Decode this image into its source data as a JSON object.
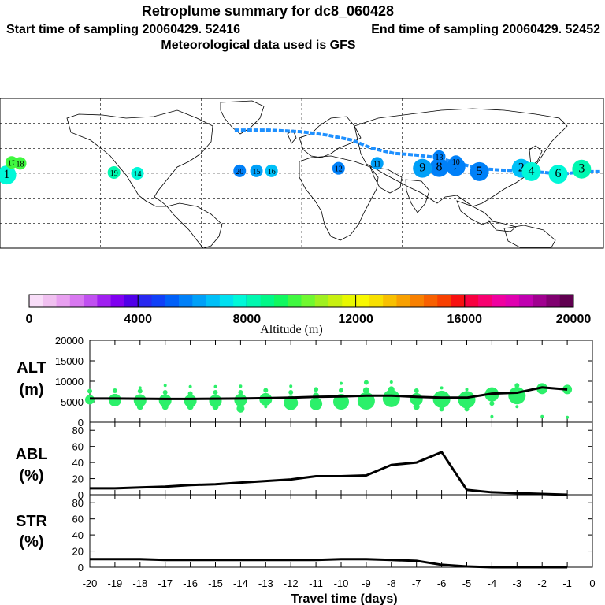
{
  "title": {
    "line1": "Retroplume summary for dc8_060428",
    "line2_start": "Start time of sampling 20060429. 52416",
    "line2_end": "End time of sampling 20060429. 52452",
    "line3": "Meteorological data used is GFS"
  },
  "colorbar": {
    "label": "Altitude (m)",
    "ticks": [
      "0",
      "4000",
      "8000",
      "12000",
      "16000",
      "20000"
    ],
    "colors": [
      "#f8ddf8",
      "#f0c0f0",
      "#e8a0f0",
      "#d878f0",
      "#c050f0",
      "#a020f0",
      "#8000f0",
      "#5000e8",
      "#2828f0",
      "#1040f8",
      "#0060f8",
      "#0080f8",
      "#00a0f8",
      "#00c0f8",
      "#00e0f0",
      "#00f8d8",
      "#00f8b0",
      "#00f888",
      "#10f860",
      "#40f840",
      "#70f830",
      "#a0f020",
      "#c8f010",
      "#e8f800",
      "#f8f800",
      "#f8e000",
      "#f8c000",
      "#f8a000",
      "#f88000",
      "#f86000",
      "#f84000",
      "#f81010",
      "#f80040",
      "#f80070",
      "#f000a0",
      "#e000b0",
      "#c000b0",
      "#a00090",
      "#800070",
      "#600050"
    ]
  },
  "map": {
    "trajectory_labels": [
      {
        "t": "1",
        "lon": -176,
        "lat": -2,
        "alt": 7800
      },
      {
        "t": "2",
        "lon": 131,
        "lat": 6,
        "alt": 6800
      },
      {
        "t": "3",
        "lon": 167,
        "lat": 5,
        "alt": 8200
      },
      {
        "t": "4",
        "lon": 137,
        "lat": 2,
        "alt": 7500
      },
      {
        "t": "5",
        "lon": 106,
        "lat": 2,
        "alt": 5500
      },
      {
        "t": "6",
        "lon": 153,
        "lat": -1,
        "alt": 7800
      },
      {
        "t": "7",
        "lon": 92,
        "lat": 8,
        "alt": 5800
      },
      {
        "t": "8",
        "lon": 82,
        "lat": 7,
        "alt": 5500
      },
      {
        "t": "9",
        "lon": 72,
        "lat": 6,
        "alt": 6400
      },
      {
        "t": "10",
        "lon": 92,
        "lat": 14,
        "alt": 5500
      },
      {
        "t": "11",
        "lon": 45,
        "lat": 12,
        "alt": 6000
      },
      {
        "t": "12",
        "lon": 22,
        "lat": 6,
        "alt": 5800
      },
      {
        "t": "13",
        "lon": 82,
        "lat": 20,
        "alt": 5500
      },
      {
        "t": "14",
        "lon": -98,
        "lat": 0,
        "alt": 7800
      },
      {
        "t": "15",
        "lon": -27,
        "lat": 3,
        "alt": 6000
      },
      {
        "t": "16",
        "lon": -18,
        "lat": 3,
        "alt": 6500
      },
      {
        "t": "17",
        "lon": -173,
        "lat": 13,
        "alt": 9500
      },
      {
        "t": "18",
        "lon": -168,
        "lat": 12,
        "alt": 9500
      },
      {
        "t": "19",
        "lon": -112,
        "lat": 1,
        "alt": 8000
      },
      {
        "t": "20",
        "lon": -37,
        "lat": 3,
        "alt": 5800
      }
    ],
    "path_lonlat": [
      [
        -40,
        52
      ],
      [
        -20,
        52
      ],
      [
        0,
        50
      ],
      [
        15,
        46
      ],
      [
        30,
        40
      ],
      [
        42,
        30
      ],
      [
        55,
        24
      ],
      [
        68,
        22
      ],
      [
        80,
        19
      ],
      [
        92,
        13
      ],
      [
        105,
        6
      ],
      [
        118,
        4
      ],
      [
        130,
        3
      ],
      [
        145,
        1
      ],
      [
        155,
        -1
      ],
      [
        168,
        2
      ],
      [
        178,
        2
      ]
    ]
  },
  "chart_data": [
    {
      "type": "scatter",
      "panel": "ALT",
      "ylabel": "ALT\n(m)",
      "ylim": [
        0,
        20000
      ],
      "yticks": [
        0,
        5000,
        10000,
        15000,
        20000
      ],
      "xlim": [
        -20,
        0
      ],
      "line": {
        "x": [
          -20,
          -19,
          -18,
          -17,
          -16,
          -15,
          -14,
          -13,
          -12,
          -11,
          -10,
          -9,
          -8,
          -7,
          -6,
          -5,
          -4,
          -3,
          -2,
          -1
        ],
        "y": [
          5800,
          5800,
          5750,
          5700,
          5700,
          5750,
          5800,
          5900,
          6000,
          6200,
          6300,
          6500,
          6500,
          6200,
          6000,
          6000,
          7000,
          7200,
          8500,
          8000
        ]
      },
      "points": [
        {
          "x": -20,
          "y": 5500,
          "s": 6
        },
        {
          "x": -20,
          "y": 7600,
          "s": 3
        },
        {
          "x": -19,
          "y": 5400,
          "s": 8
        },
        {
          "x": -19,
          "y": 7700,
          "s": 3
        },
        {
          "x": -18,
          "y": 5300,
          "s": 8
        },
        {
          "x": -18,
          "y": 3800,
          "s": 4
        },
        {
          "x": -18,
          "y": 7600,
          "s": 3
        },
        {
          "x": -18,
          "y": 8400,
          "s": 2
        },
        {
          "x": -17,
          "y": 5300,
          "s": 8
        },
        {
          "x": -17,
          "y": 3800,
          "s": 4
        },
        {
          "x": -17,
          "y": 7300,
          "s": 3
        },
        {
          "x": -17,
          "y": 9000,
          "s": 2
        },
        {
          "x": -16,
          "y": 5200,
          "s": 8
        },
        {
          "x": -16,
          "y": 3800,
          "s": 4
        },
        {
          "x": -16,
          "y": 7000,
          "s": 3
        },
        {
          "x": -16,
          "y": 8700,
          "s": 2
        },
        {
          "x": -15,
          "y": 5200,
          "s": 8
        },
        {
          "x": -15,
          "y": 3800,
          "s": 4
        },
        {
          "x": -15,
          "y": 7300,
          "s": 3
        },
        {
          "x": -15,
          "y": 8700,
          "s": 2
        },
        {
          "x": -14,
          "y": 5400,
          "s": 8
        },
        {
          "x": -14,
          "y": 3300,
          "s": 5
        },
        {
          "x": -14,
          "y": 7300,
          "s": 3
        },
        {
          "x": -14,
          "y": 8800,
          "s": 2
        },
        {
          "x": -13,
          "y": 5600,
          "s": 8
        },
        {
          "x": -13,
          "y": 7800,
          "s": 3
        },
        {
          "x": -13,
          "y": 3800,
          "s": 2
        },
        {
          "x": -12,
          "y": 4700,
          "s": 9
        },
        {
          "x": -12,
          "y": 7300,
          "s": 3
        },
        {
          "x": -12,
          "y": 8800,
          "s": 2
        },
        {
          "x": -11,
          "y": 4500,
          "s": 8
        },
        {
          "x": -11,
          "y": 6500,
          "s": 4
        },
        {
          "x": -11,
          "y": 8000,
          "s": 3
        },
        {
          "x": -10,
          "y": 5000,
          "s": 10
        },
        {
          "x": -10,
          "y": 7800,
          "s": 3
        },
        {
          "x": -10,
          "y": 9500,
          "s": 2
        },
        {
          "x": -9,
          "y": 5200,
          "s": 11
        },
        {
          "x": -9,
          "y": 7800,
          "s": 4
        },
        {
          "x": -9,
          "y": 9700,
          "s": 3
        },
        {
          "x": -8,
          "y": 5800,
          "s": 11
        },
        {
          "x": -8,
          "y": 8000,
          "s": 4
        },
        {
          "x": -8,
          "y": 9800,
          "s": 2
        },
        {
          "x": -7,
          "y": 5600,
          "s": 8
        },
        {
          "x": -7,
          "y": 3800,
          "s": 4
        },
        {
          "x": -7,
          "y": 7700,
          "s": 3
        },
        {
          "x": -6,
          "y": 5600,
          "s": 11
        },
        {
          "x": -6,
          "y": 3200,
          "s": 3
        },
        {
          "x": -6,
          "y": 8400,
          "s": 2
        },
        {
          "x": -5,
          "y": 5500,
          "s": 11
        },
        {
          "x": -5,
          "y": 3200,
          "s": 3
        },
        {
          "x": -5,
          "y": 8000,
          "s": 2
        },
        {
          "x": -4,
          "y": 6800,
          "s": 9
        },
        {
          "x": -4,
          "y": 4600,
          "s": 3
        },
        {
          "x": -4,
          "y": 1400,
          "s": 2
        },
        {
          "x": -3,
          "y": 6500,
          "s": 11
        },
        {
          "x": -3,
          "y": 9000,
          "s": 3
        },
        {
          "x": -3,
          "y": 3800,
          "s": 2
        },
        {
          "x": -2,
          "y": 8200,
          "s": 7
        },
        {
          "x": -2,
          "y": 1400,
          "s": 2
        },
        {
          "x": -1,
          "y": 8000,
          "s": 6
        },
        {
          "x": -1,
          "y": 1200,
          "s": 2
        }
      ]
    },
    {
      "type": "line",
      "panel": "ABL",
      "ylabel": "ABL\n(%)",
      "ylim": [
        0,
        90
      ],
      "yticks": [
        0,
        20,
        40,
        60,
        80
      ],
      "xlim": [
        -20,
        0
      ],
      "x": [
        -20,
        -19,
        -18,
        -17,
        -16,
        -15,
        -14,
        -13,
        -12,
        -11,
        -10,
        -9,
        -8,
        -7,
        -6,
        -5,
        -4,
        -3,
        -2,
        -1
      ],
      "y": [
        8,
        8,
        9,
        10,
        12,
        13,
        15,
        17,
        19,
        23,
        23,
        24,
        37,
        40,
        53,
        6,
        3,
        2,
        1,
        0
      ]
    },
    {
      "type": "line",
      "panel": "STR",
      "ylabel": "STR\n(%)",
      "ylim": [
        0,
        90
      ],
      "yticks": [
        0,
        20,
        40,
        60,
        80
      ],
      "xlim": [
        -20,
        0
      ],
      "x": [
        -20,
        -19,
        -18,
        -17,
        -16,
        -15,
        -14,
        -13,
        -12,
        -11,
        -10,
        -9,
        -8,
        -7,
        -6,
        -5,
        -4,
        -3,
        -2,
        -1
      ],
      "y": [
        10,
        10,
        10,
        9,
        9,
        9,
        9,
        9,
        9,
        9,
        10,
        10,
        9,
        8,
        3,
        1,
        0,
        0,
        0,
        0
      ],
      "xlabel": "Travel time (days)",
      "xticks": [
        -20,
        -19,
        -18,
        -17,
        -16,
        -15,
        -14,
        -13,
        -12,
        -11,
        -10,
        -9,
        -8,
        -7,
        -6,
        -5,
        -4,
        -3,
        -2,
        -1,
        0
      ]
    }
  ]
}
